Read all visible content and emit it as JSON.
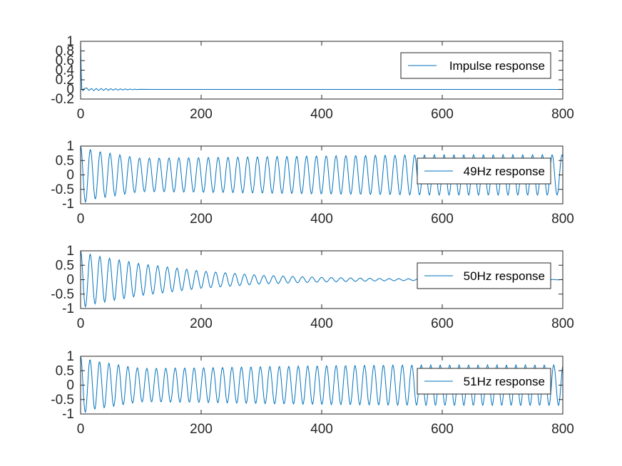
{
  "chart_data": [
    {
      "type": "line",
      "legend": [
        "Impulse response"
      ],
      "legend_placement": "right",
      "xlim": [
        0,
        800
      ],
      "ylim": [
        -0.2,
        1
      ],
      "x_ticks": [
        0,
        200,
        400,
        600,
        800
      ],
      "y_ticks": [
        -0.2,
        0,
        0.2,
        0.4,
        0.6,
        0.8,
        1
      ],
      "x_tick_labels": [
        "0",
        "200",
        "400",
        "600",
        "800"
      ],
      "y_tick_labels": [
        "-0.2",
        "0",
        "0.2",
        "0.4",
        "0.6",
        "0.8",
        "1"
      ],
      "grid": false,
      "series": [
        {
          "name": "Impulse response",
          "color": "#0072bd",
          "x": [
            0,
            1,
            2,
            4,
            6,
            10,
            14,
            18,
            22,
            26,
            30,
            34,
            38,
            42,
            46,
            50,
            54,
            58,
            62,
            66,
            70,
            74,
            78,
            82,
            86,
            90,
            94,
            98,
            120,
            800
          ],
          "y": [
            1,
            0.35,
            0.02,
            -0.03,
            0.02,
            0.03,
            -0.02,
            0.02,
            -0.025,
            0.02,
            -0.022,
            0.02,
            -0.02,
            0.018,
            -0.018,
            0.016,
            -0.016,
            0.014,
            -0.014,
            0.012,
            -0.012,
            0.01,
            -0.01,
            0.008,
            -0.008,
            0.006,
            -0.004,
            0.002,
            0,
            0
          ]
        }
      ]
    },
    {
      "type": "line",
      "legend": [
        "49Hz response"
      ],
      "legend_placement": "right",
      "xlim": [
        0,
        800
      ],
      "ylim": [
        -1,
        1
      ],
      "x_ticks": [
        0,
        200,
        400,
        600,
        800
      ],
      "y_ticks": [
        -1,
        -0.5,
        0,
        0.5,
        1
      ],
      "x_tick_labels": [
        "0",
        "200",
        "400",
        "600",
        "800"
      ],
      "y_tick_labels": [
        "-1",
        "-0.5",
        "0",
        "0.5",
        "1"
      ],
      "grid": false,
      "series": [
        {
          "name": "49Hz response",
          "color": "#0072bd",
          "x": [
            0,
            20,
            100,
            200,
            300,
            400,
            500,
            600,
            700,
            800
          ],
          "y_amplitude": [
            1,
            0.85,
            0.58,
            0.6,
            0.63,
            0.66,
            0.68,
            0.7,
            0.7,
            0.7
          ],
          "cycle_length": 16.3
        }
      ]
    },
    {
      "type": "line",
      "legend": [
        "50Hz response"
      ],
      "legend_placement": "right",
      "xlim": [
        0,
        800
      ],
      "ylim": [
        -1,
        1
      ],
      "x_ticks": [
        0,
        200,
        400,
        600,
        800
      ],
      "y_ticks": [
        -1,
        -0.5,
        0,
        0.5,
        1
      ],
      "x_tick_labels": [
        "0",
        "200",
        "400",
        "600",
        "800"
      ],
      "y_tick_labels": [
        "-1",
        "-0.5",
        "0",
        "0.5",
        "1"
      ],
      "grid": false,
      "series": [
        {
          "name": "50Hz response",
          "color": "#0072bd",
          "x": [
            0,
            20,
            100,
            200,
            300,
            400,
            500,
            600,
            700,
            800
          ],
          "y_amplitude": [
            1,
            0.85,
            0.55,
            0.3,
            0.15,
            0.08,
            0.04,
            0.02,
            0.01,
            0.005
          ],
          "cycle_length": 16
        }
      ]
    },
    {
      "type": "line",
      "legend": [
        "51Hz response"
      ],
      "legend_placement": "right",
      "xlim": [
        0,
        800
      ],
      "ylim": [
        -1,
        1
      ],
      "x_ticks": [
        0,
        200,
        400,
        600,
        800
      ],
      "y_ticks": [
        -1,
        -0.5,
        0,
        0.5,
        1
      ],
      "x_tick_labels": [
        "0",
        "200",
        "400",
        "600",
        "800"
      ],
      "y_tick_labels": [
        "-1",
        "-0.5",
        "0",
        "0.5",
        "1"
      ],
      "grid": false,
      "series": [
        {
          "name": "51Hz response",
          "color": "#0072bd",
          "x": [
            0,
            20,
            100,
            200,
            300,
            400,
            500,
            600,
            700,
            800
          ],
          "y_amplitude": [
            1,
            0.85,
            0.58,
            0.6,
            0.64,
            0.67,
            0.69,
            0.7,
            0.7,
            0.7
          ],
          "cycle_length": 15.7
        }
      ]
    }
  ]
}
